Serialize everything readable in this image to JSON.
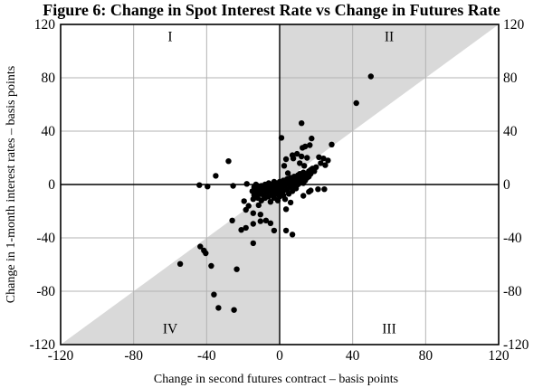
{
  "title": "Figure 6: Change in Spot Interest Rate vs Change in Futures Rate",
  "colors": {
    "point": "#000000",
    "shade": "#d9d9d9",
    "grid": "#b3b3b3",
    "axis": "#000000",
    "frame": "#000000",
    "background": "#ffffff"
  },
  "chart_data": {
    "type": "scatter",
    "title": "Figure 6: Change in Spot Interest Rate vs Change in Futures Rate",
    "xlabel": "Change in second futures contract – basis points",
    "ylabel": "Change in 1-month interest rates – basis points",
    "xlim": [
      -120,
      120
    ],
    "ylim": [
      -120,
      120
    ],
    "xticks": [
      -120,
      -80,
      -40,
      0,
      40,
      80,
      120
    ],
    "yticks": [
      -120,
      -80,
      -40,
      0,
      40,
      80,
      120
    ],
    "grid": true,
    "legend": "none",
    "shaded_triangles": [
      [
        [
          0,
          0
        ],
        [
          0,
          120
        ],
        [
          120,
          120
        ]
      ],
      [
        [
          0,
          0
        ],
        [
          0,
          -120
        ],
        [
          -120,
          -120
        ]
      ]
    ],
    "quadrant_labels": [
      {
        "label": "I",
        "x": -60,
        "y": 111
      },
      {
        "label": "II",
        "x": 60,
        "y": 111
      },
      {
        "label": "III",
        "x": 60,
        "y": -108
      },
      {
        "label": "IV",
        "x": -60,
        "y": -108
      }
    ],
    "points": [
      [
        50,
        81
      ],
      [
        42,
        61
      ],
      [
        12,
        46
      ],
      [
        1,
        35
      ],
      [
        17.5,
        34.5
      ],
      [
        28.5,
        30
      ],
      [
        16.5,
        29.5
      ],
      [
        14,
        28.5
      ],
      [
        12.5,
        27.5
      ],
      [
        9.5,
        23
      ],
      [
        7,
        22
      ],
      [
        12,
        21
      ],
      [
        15,
        20
      ],
      [
        21.5,
        20.5
      ],
      [
        24,
        19.5
      ],
      [
        26.5,
        18
      ],
      [
        22.5,
        16
      ],
      [
        25,
        14.5
      ],
      [
        3.5,
        19
      ],
      [
        7.5,
        19.5
      ],
      [
        2.5,
        14
      ],
      [
        4.5,
        8.5
      ],
      [
        11,
        16
      ],
      [
        13.5,
        14
      ],
      [
        -28,
        17.5
      ],
      [
        -35,
        6.5
      ],
      [
        -44,
        -0.5
      ],
      [
        -39.5,
        -1.5
      ],
      [
        -25.5,
        -1
      ],
      [
        -18,
        0.5
      ],
      [
        -19.5,
        -12.5
      ],
      [
        -14.5,
        -11
      ],
      [
        -17,
        -16
      ],
      [
        -11.5,
        -15.5
      ],
      [
        -18.5,
        -19
      ],
      [
        -14.5,
        -21.5
      ],
      [
        -10.5,
        -22.5
      ],
      [
        -26,
        -27
      ],
      [
        -21,
        -34
      ],
      [
        -18.5,
        -32.5
      ],
      [
        -14.5,
        -29.5
      ],
      [
        -10.5,
        -27.5
      ],
      [
        -7.5,
        -27
      ],
      [
        -5,
        -29
      ],
      [
        -3,
        -34.5
      ],
      [
        3.5,
        -34.5
      ],
      [
        7,
        -37.5
      ],
      [
        -14.5,
        -44
      ],
      [
        -43.5,
        -46.5
      ],
      [
        -41.5,
        -49.5
      ],
      [
        -40.5,
        -51.5
      ],
      [
        -54.5,
        -59.5
      ],
      [
        -37.5,
        -61
      ],
      [
        -23.5,
        -63.5
      ],
      [
        -36,
        -82.5
      ],
      [
        -33.5,
        -92.5
      ],
      [
        -25,
        -94
      ],
      [
        6,
        -13.5
      ],
      [
        3.5,
        -18.5
      ],
      [
        13,
        -8.5
      ],
      [
        17,
        -4.5
      ],
      [
        21,
        -3.5
      ],
      [
        24.5,
        -3.5
      ],
      [
        16,
        -5.5
      ],
      [
        -15,
        -5
      ],
      [
        -14,
        -2
      ],
      [
        -14,
        -8
      ],
      [
        -13,
        -4
      ],
      [
        -13,
        0
      ],
      [
        -12,
        -6
      ],
      [
        -12,
        -1
      ],
      [
        -12,
        -10
      ],
      [
        -11,
        -3
      ],
      [
        -11,
        -7
      ],
      [
        -10,
        -1
      ],
      [
        -10,
        -5
      ],
      [
        -10,
        -12
      ],
      [
        -9,
        -2
      ],
      [
        -9,
        -8
      ],
      [
        -8,
        0
      ],
      [
        -8,
        -4
      ],
      [
        -8,
        -10
      ],
      [
        -7,
        -2
      ],
      [
        -7,
        -6
      ],
      [
        -6,
        1
      ],
      [
        -6,
        -4
      ],
      [
        -6,
        -9
      ],
      [
        -5,
        -1
      ],
      [
        -5,
        -5
      ],
      [
        -5,
        -13
      ],
      [
        -4,
        0
      ],
      [
        -4,
        -3
      ],
      [
        -4,
        -7
      ],
      [
        -3,
        2
      ],
      [
        -3,
        -1
      ],
      [
        -3,
        -5
      ],
      [
        -3,
        -10
      ],
      [
        -2,
        1
      ],
      [
        -2,
        -3
      ],
      [
        -2,
        -7
      ],
      [
        -1,
        0
      ],
      [
        -1,
        -4
      ],
      [
        -1,
        -12
      ],
      [
        0,
        2
      ],
      [
        0,
        -1
      ],
      [
        0,
        -6
      ],
      [
        0,
        -9
      ],
      [
        1,
        1
      ],
      [
        1,
        -3
      ],
      [
        2,
        3
      ],
      [
        2,
        0
      ],
      [
        2,
        -5
      ],
      [
        2,
        -8
      ],
      [
        3,
        2
      ],
      [
        3,
        -1
      ],
      [
        3,
        -11
      ],
      [
        4,
        4
      ],
      [
        4,
        1
      ],
      [
        4,
        -4
      ],
      [
        5,
        3
      ],
      [
        5,
        0
      ],
      [
        5,
        -7
      ],
      [
        6,
        5
      ],
      [
        6,
        2
      ],
      [
        6,
        -2
      ],
      [
        7,
        4
      ],
      [
        7,
        1
      ],
      [
        7,
        -5
      ],
      [
        8,
        6
      ],
      [
        8,
        3
      ],
      [
        8,
        -1
      ],
      [
        9,
        5
      ],
      [
        9,
        2
      ],
      [
        9,
        -3
      ],
      [
        10,
        7
      ],
      [
        10,
        4
      ],
      [
        10,
        0
      ],
      [
        11,
        8
      ],
      [
        11,
        5
      ],
      [
        11,
        1
      ],
      [
        12,
        6
      ],
      [
        12,
        2
      ],
      [
        13,
        9
      ],
      [
        13,
        4
      ],
      [
        13,
        1
      ],
      [
        14,
        7
      ],
      [
        14,
        3
      ],
      [
        15,
        8
      ],
      [
        15,
        5
      ],
      [
        16,
        10
      ],
      [
        16,
        6
      ],
      [
        17,
        11
      ],
      [
        17,
        8
      ],
      [
        18,
        12
      ],
      [
        19,
        10
      ],
      [
        20,
        13
      ]
    ]
  }
}
